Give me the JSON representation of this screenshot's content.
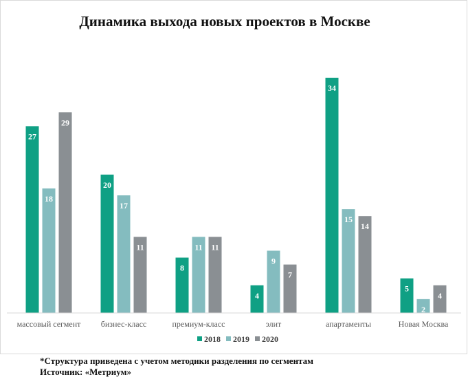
{
  "chart_data": {
    "type": "bar",
    "title": "Динамика выхода новых проектов в Москве",
    "categories": [
      "массовый сегмент",
      "бизнес-класс",
      "премиум-класс",
      "элит",
      "апартаменты",
      "Новая Москва"
    ],
    "series": [
      {
        "name": "2018",
        "color": "#0fa084",
        "values": [
          27,
          20,
          8,
          4,
          34,
          5
        ]
      },
      {
        "name": "2019",
        "color": "#84bcbf",
        "values": [
          18,
          17,
          11,
          9,
          15,
          2
        ]
      },
      {
        "name": "2020",
        "color": "#8a8f93",
        "values": [
          29,
          11,
          11,
          7,
          14,
          4
        ]
      }
    ],
    "ylim": [
      0,
      34
    ],
    "grid": false,
    "legend": "bottom-center",
    "data_labels": true
  },
  "footnote": {
    "line1": "*Структура приведена с учетом методики разделения по сегментам",
    "line2": "Источник: «Метриум»"
  }
}
